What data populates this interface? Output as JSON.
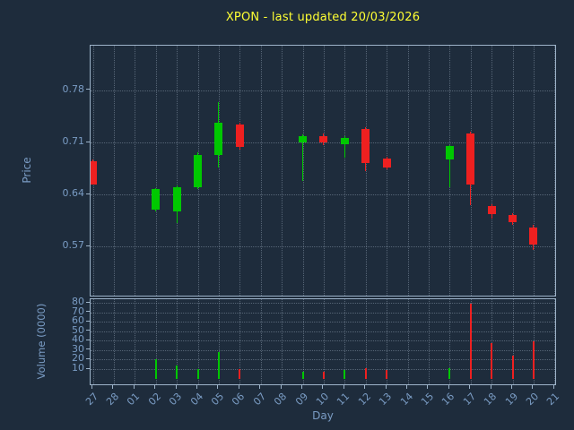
{
  "chart_data": {
    "type": "candlestick",
    "title": "XPON - last updated 20/03/2026",
    "xlabel": "Day",
    "legend": "none",
    "grid": "dotted",
    "price_axis": {
      "label": "Price",
      "ticks": [
        0.57,
        0.64,
        0.71,
        0.78
      ],
      "range": [
        0.502,
        0.84
      ]
    },
    "volume_axis": {
      "label": "Volume (0000)",
      "ticks": [
        10,
        20,
        30,
        40,
        50,
        60,
        70,
        80
      ],
      "range": [
        -8,
        84
      ]
    },
    "x_ticks": [
      "27",
      "28",
      "01",
      "02",
      "03",
      "04",
      "05",
      "06",
      "07",
      "08",
      "09",
      "10",
      "11",
      "12",
      "13",
      "14",
      "15",
      "16",
      "17",
      "18",
      "19",
      "20",
      "21"
    ],
    "colors": {
      "background": "#1e2c3c",
      "up": "#00c800",
      "down": "#ee2020",
      "title": "#ffff33",
      "tick_label": "#7a9cc4",
      "spine": "#9db3c9"
    },
    "candles": [
      {
        "day": "27",
        "open": 0.685,
        "high": 0.687,
        "low": 0.653,
        "close": 0.653,
        "volume": 0
      },
      {
        "day": "02",
        "open": 0.62,
        "high": 0.649,
        "low": 0.618,
        "close": 0.647,
        "volume": 20
      },
      {
        "day": "03",
        "open": 0.617,
        "high": 0.652,
        "low": 0.602,
        "close": 0.65,
        "volume": 14
      },
      {
        "day": "04",
        "open": 0.65,
        "high": 0.697,
        "low": 0.648,
        "close": 0.693,
        "volume": 10
      },
      {
        "day": "05",
        "open": 0.693,
        "high": 0.764,
        "low": 0.677,
        "close": 0.737,
        "volume": 28
      },
      {
        "day": "06",
        "open": 0.734,
        "high": 0.737,
        "low": 0.7,
        "close": 0.704,
        "volume": 10
      },
      {
        "day": "09",
        "open": 0.71,
        "high": 0.721,
        "low": 0.658,
        "close": 0.719,
        "volume": 7
      },
      {
        "day": "10",
        "open": 0.719,
        "high": 0.722,
        "low": 0.707,
        "close": 0.71,
        "volume": 7
      },
      {
        "day": "11",
        "open": 0.708,
        "high": 0.718,
        "low": 0.69,
        "close": 0.716,
        "volume": 9
      },
      {
        "day": "12",
        "open": 0.728,
        "high": 0.73,
        "low": 0.671,
        "close": 0.683,
        "volume": 11
      },
      {
        "day": "13",
        "open": 0.689,
        "high": 0.691,
        "low": 0.674,
        "close": 0.676,
        "volume": 9
      },
      {
        "day": "16",
        "open": 0.687,
        "high": 0.707,
        "low": 0.65,
        "close": 0.705,
        "volume": 11
      },
      {
        "day": "17",
        "open": 0.722,
        "high": 0.725,
        "low": 0.626,
        "close": 0.653,
        "volume": 79
      },
      {
        "day": "18",
        "open": 0.625,
        "high": 0.627,
        "low": 0.608,
        "close": 0.614,
        "volume": 38
      },
      {
        "day": "19",
        "open": 0.613,
        "high": 0.615,
        "low": 0.599,
        "close": 0.603,
        "volume": 24
      },
      {
        "day": "20",
        "open": 0.596,
        "high": 0.599,
        "low": 0.566,
        "close": 0.573,
        "volume": 39
      }
    ]
  }
}
